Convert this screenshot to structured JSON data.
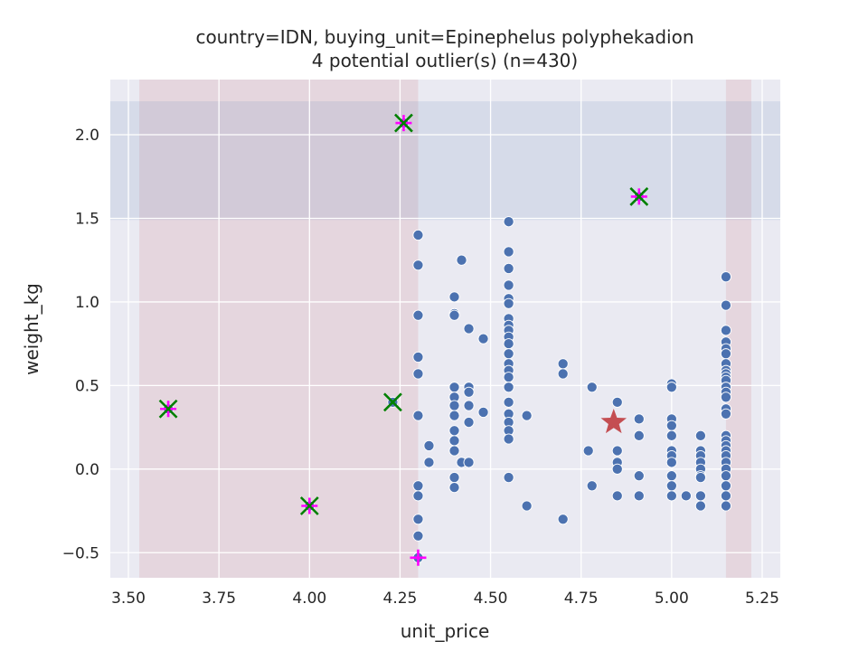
{
  "chart_data": {
    "type": "scatter",
    "title_line1": "country=IDN, buying_unit=Epinephelus polyphekadion",
    "title_line2": "4 potential outlier(s) (n=430)",
    "xlabel": "unit_price",
    "ylabel": "weight_kg",
    "xlim": [
      3.45,
      5.3
    ],
    "ylim": [
      -0.65,
      2.33
    ],
    "xticks": [
      3.5,
      3.75,
      4.0,
      4.25,
      4.5,
      4.75,
      5.0,
      5.25
    ],
    "xtick_labels": [
      "3.50",
      "3.75",
      "4.00",
      "4.25",
      "4.50",
      "4.75",
      "5.00",
      "5.25"
    ],
    "yticks": [
      -0.5,
      0.0,
      0.5,
      1.0,
      1.5,
      2.0
    ],
    "ytick_labels": [
      "−0.5",
      "0.0",
      "0.5",
      "1.0",
      "1.5",
      "2.0"
    ],
    "grid": true,
    "colors": {
      "background": "#eaeaf2",
      "grid": "#ffffff",
      "points": "#4c72b0",
      "x_band": "#c44e52",
      "y_band": "#4c72b0",
      "centroid": "#c44e52",
      "outlier_x": "#008000",
      "outlier_plus": "#ff00ff"
    },
    "shaded_regions": {
      "x_ranges": [
        [
          3.53,
          4.3
        ],
        [
          5.15,
          5.22
        ]
      ],
      "y_ranges": [
        [
          1.49,
          2.2
        ]
      ]
    },
    "centroid": {
      "x": 4.84,
      "y": 0.28
    },
    "outliers_x_marker": [
      {
        "x": 4.26,
        "y": 2.07
      },
      {
        "x": 4.91,
        "y": 1.63
      },
      {
        "x": 3.61,
        "y": 0.36
      },
      {
        "x": 4.23,
        "y": 0.4
      },
      {
        "x": 4.0,
        "y": -0.22
      }
    ],
    "outliers_plus_marker": [
      {
        "x": 4.26,
        "y": 2.07
      },
      {
        "x": 4.91,
        "y": 1.63
      },
      {
        "x": 3.61,
        "y": 0.36
      },
      {
        "x": 4.0,
        "y": -0.22
      },
      {
        "x": 4.3,
        "y": -0.53
      }
    ],
    "points": [
      [
        3.61,
        0.36
      ],
      [
        4.0,
        -0.22
      ],
      [
        4.23,
        0.4
      ],
      [
        4.26,
        2.07
      ],
      [
        4.91,
        1.63
      ],
      [
        4.3,
        -0.53
      ],
      [
        4.3,
        1.4
      ],
      [
        4.3,
        1.22
      ],
      [
        4.3,
        0.92
      ],
      [
        4.3,
        0.67
      ],
      [
        4.3,
        0.57
      ],
      [
        4.3,
        0.32
      ],
      [
        4.3,
        -0.1
      ],
      [
        4.3,
        -0.16
      ],
      [
        4.3,
        -0.3
      ],
      [
        4.3,
        -0.4
      ],
      [
        4.33,
        0.14
      ],
      [
        4.33,
        0.04
      ],
      [
        4.4,
        1.03
      ],
      [
        4.4,
        0.93
      ],
      [
        4.4,
        0.92
      ],
      [
        4.4,
        0.49
      ],
      [
        4.4,
        0.43
      ],
      [
        4.4,
        0.38
      ],
      [
        4.4,
        0.32
      ],
      [
        4.4,
        0.23
      ],
      [
        4.4,
        0.17
      ],
      [
        4.4,
        0.11
      ],
      [
        4.4,
        -0.05
      ],
      [
        4.4,
        -0.11
      ],
      [
        4.42,
        1.25
      ],
      [
        4.42,
        0.04
      ],
      [
        4.44,
        0.84
      ],
      [
        4.44,
        0.49
      ],
      [
        4.44,
        0.46
      ],
      [
        4.44,
        0.38
      ],
      [
        4.44,
        0.28
      ],
      [
        4.44,
        0.04
      ],
      [
        4.48,
        0.78
      ],
      [
        4.48,
        0.34
      ],
      [
        4.55,
        1.48
      ],
      [
        4.55,
        1.3
      ],
      [
        4.55,
        1.2
      ],
      [
        4.55,
        1.1
      ],
      [
        4.55,
        1.02
      ],
      [
        4.55,
        0.99
      ],
      [
        4.55,
        0.9
      ],
      [
        4.55,
        0.86
      ],
      [
        4.55,
        0.83
      ],
      [
        4.55,
        0.79
      ],
      [
        4.55,
        0.75
      ],
      [
        4.55,
        0.69
      ],
      [
        4.55,
        0.63
      ],
      [
        4.55,
        0.59
      ],
      [
        4.55,
        0.55
      ],
      [
        4.55,
        0.49
      ],
      [
        4.55,
        0.4
      ],
      [
        4.55,
        0.33
      ],
      [
        4.55,
        0.28
      ],
      [
        4.55,
        0.23
      ],
      [
        4.55,
        0.18
      ],
      [
        4.55,
        -0.05
      ],
      [
        4.6,
        0.32
      ],
      [
        4.6,
        -0.22
      ],
      [
        4.7,
        0.63
      ],
      [
        4.7,
        0.57
      ],
      [
        4.7,
        -0.3
      ],
      [
        4.77,
        0.11
      ],
      [
        4.78,
        0.49
      ],
      [
        4.78,
        -0.1
      ],
      [
        4.85,
        0.4
      ],
      [
        4.85,
        0.11
      ],
      [
        4.85,
        0.04
      ],
      [
        4.85,
        0.0
      ],
      [
        4.85,
        -0.16
      ],
      [
        4.91,
        0.3
      ],
      [
        4.91,
        0.2
      ],
      [
        4.91,
        -0.04
      ],
      [
        4.91,
        -0.16
      ],
      [
        5.0,
        0.51
      ],
      [
        5.0,
        0.49
      ],
      [
        5.0,
        0.3
      ],
      [
        5.0,
        0.26
      ],
      [
        5.0,
        0.2
      ],
      [
        5.0,
        0.11
      ],
      [
        5.0,
        0.08
      ],
      [
        5.0,
        0.04
      ],
      [
        5.0,
        -0.04
      ],
      [
        5.0,
        -0.1
      ],
      [
        5.0,
        -0.16
      ],
      [
        5.04,
        -0.16
      ],
      [
        5.08,
        0.2
      ],
      [
        5.08,
        0.11
      ],
      [
        5.08,
        0.08
      ],
      [
        5.08,
        0.04
      ],
      [
        5.08,
        0.0
      ],
      [
        5.08,
        -0.04
      ],
      [
        5.08,
        -0.05
      ],
      [
        5.08,
        -0.16
      ],
      [
        5.08,
        -0.22
      ],
      [
        5.15,
        1.15
      ],
      [
        5.15,
        0.98
      ],
      [
        5.15,
        0.83
      ],
      [
        5.15,
        0.76
      ],
      [
        5.15,
        0.72
      ],
      [
        5.15,
        0.69
      ],
      [
        5.15,
        0.63
      ],
      [
        5.15,
        0.59
      ],
      [
        5.15,
        0.57
      ],
      [
        5.15,
        0.55
      ],
      [
        5.15,
        0.53
      ],
      [
        5.15,
        0.49
      ],
      [
        5.15,
        0.46
      ],
      [
        5.15,
        0.43
      ],
      [
        5.15,
        0.36
      ],
      [
        5.15,
        0.33
      ],
      [
        5.15,
        0.2
      ],
      [
        5.15,
        0.17
      ],
      [
        5.15,
        0.14
      ],
      [
        5.15,
        0.11
      ],
      [
        5.15,
        0.08
      ],
      [
        5.15,
        0.04
      ],
      [
        5.15,
        0.0
      ],
      [
        5.15,
        -0.04
      ],
      [
        5.15,
        -0.1
      ],
      [
        5.15,
        -0.16
      ],
      [
        5.15,
        -0.22
      ]
    ]
  }
}
